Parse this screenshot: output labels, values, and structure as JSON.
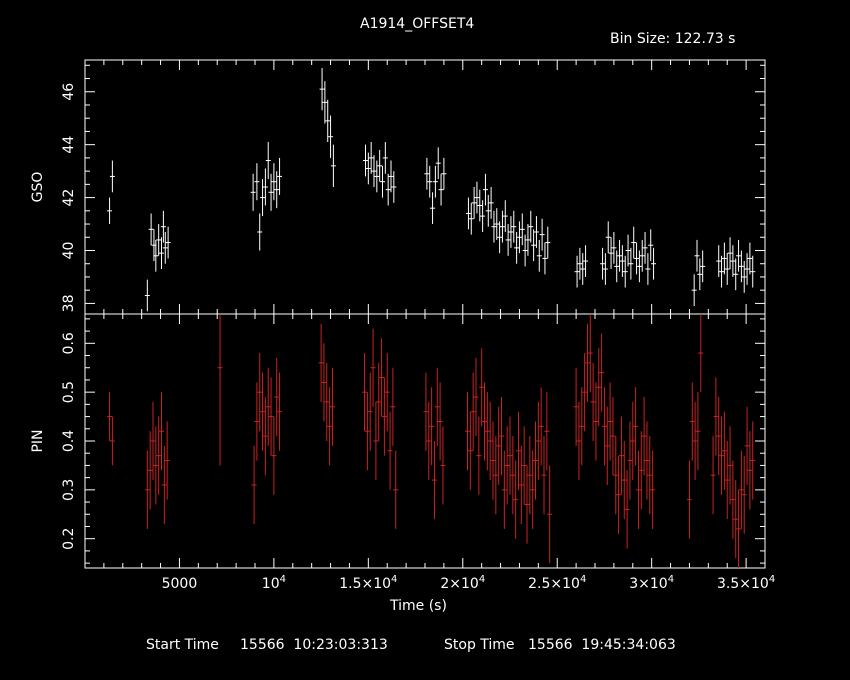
{
  "chart_data": [
    {
      "type": "scatter",
      "panel": "top",
      "title": "A1914_OFFSET4",
      "subtitle": "Bin Size: 122.73 s",
      "xlabel": "Time (s)",
      "ylabel": "GSO",
      "xlim": [
        0,
        36000
      ],
      "ylim": [
        37.6,
        47.2
      ],
      "yticks": [
        "38",
        "40",
        "42",
        "44",
        "46"
      ],
      "color": "#ffffff",
      "grid": false,
      "x": [
        1300,
        1450,
        3300,
        3500,
        3650,
        3750,
        3900,
        4050,
        4150,
        4250,
        4400,
        8900,
        9100,
        9250,
        9400,
        9550,
        9700,
        9850,
        10000,
        10150,
        10300,
        12550,
        12700,
        12850,
        13000,
        13150,
        14850,
        15000,
        15150,
        15300,
        15450,
        15600,
        15750,
        15900,
        16050,
        16200,
        16350,
        18100,
        18250,
        18400,
        18550,
        18700,
        18850,
        19000,
        20300,
        20450,
        20600,
        20750,
        20900,
        21050,
        21200,
        21350,
        21500,
        21650,
        21800,
        21950,
        22100,
        22250,
        22400,
        22550,
        22700,
        22850,
        23000,
        23150,
        23300,
        23450,
        23600,
        23750,
        23900,
        24050,
        24200,
        24350,
        24500,
        26050,
        26200,
        26350,
        26500,
        27400,
        27550,
        27700,
        27850,
        28000,
        28150,
        28300,
        28450,
        28600,
        28750,
        28900,
        29050,
        29200,
        29350,
        29500,
        29650,
        29800,
        29950,
        30100,
        32250,
        32400,
        32550,
        32700,
        33550,
        33700,
        33850,
        34000,
        34150,
        34300,
        34450,
        34600,
        34750,
        34900,
        35050,
        35200,
        35350
      ],
      "values": [
        41.5,
        42.8,
        38.3,
        40.8,
        40.2,
        39.8,
        40.4,
        39.9,
        40.9,
        40.1,
        40.3,
        42.2,
        42.6,
        40.7,
        42.0,
        42.4,
        43.4,
        42.2,
        42.6,
        42.3,
        42.8,
        46.1,
        45.6,
        44.9,
        44.3,
        43.2,
        43.4,
        43.1,
        43.5,
        43.0,
        42.8,
        43.2,
        42.6,
        43.5,
        42.3,
        42.8,
        42.4,
        42.9,
        42.6,
        41.6,
        42.6,
        43.3,
        42.3,
        42.9,
        41.4,
        41.2,
        41.8,
        42.0,
        41.7,
        41.3,
        42.3,
        41.5,
        41.8,
        40.9,
        41.0,
        40.5,
        40.9,
        41.3,
        40.4,
        40.7,
        40.9,
        40.1,
        40.5,
        40.8,
        40.0,
        40.4,
        40.9,
        40.2,
        40.7,
        39.8,
        40.6,
        39.7,
        40.3,
        39.2,
        39.5,
        39.3,
        39.6,
        39.5,
        39.3,
        40.5,
        39.9,
        40.1,
        39.4,
        39.8,
        39.6,
        39.2,
        40.0,
        39.5,
        40.3,
        39.7,
        39.4,
        39.8,
        40.1,
        39.3,
        40.2,
        39.5,
        38.5,
        39.8,
        39.1,
        39.4,
        39.6,
        39.2,
        39.7,
        39.3,
        39.9,
        39.6,
        39.1,
        39.8,
        39.4,
        39.0,
        39.3,
        39.7,
        39.2
      ],
      "errors": [
        0.5,
        0.6,
        0.6,
        0.6,
        0.6,
        0.6,
        0.6,
        0.6,
        0.6,
        0.6,
        0.6,
        0.7,
        0.7,
        0.7,
        0.7,
        0.7,
        0.7,
        0.7,
        0.7,
        0.7,
        0.7,
        0.8,
        0.8,
        0.8,
        0.8,
        0.8,
        0.6,
        0.6,
        0.6,
        0.6,
        0.6,
        0.6,
        0.6,
        0.6,
        0.6,
        0.6,
        0.6,
        0.6,
        0.6,
        0.6,
        0.6,
        0.6,
        0.6,
        0.6,
        0.6,
        0.6,
        0.6,
        0.6,
        0.6,
        0.6,
        0.6,
        0.6,
        0.6,
        0.6,
        0.6,
        0.6,
        0.6,
        0.6,
        0.6,
        0.6,
        0.6,
        0.6,
        0.6,
        0.6,
        0.6,
        0.6,
        0.6,
        0.6,
        0.6,
        0.6,
        0.6,
        0.6,
        0.6,
        0.6,
        0.6,
        0.6,
        0.6,
        0.6,
        0.6,
        0.6,
        0.6,
        0.6,
        0.6,
        0.6,
        0.6,
        0.6,
        0.6,
        0.6,
        0.6,
        0.6,
        0.6,
        0.6,
        0.6,
        0.6,
        0.6,
        0.6,
        0.6,
        0.6,
        0.6,
        0.6,
        0.6,
        0.6,
        0.6,
        0.6,
        0.6,
        0.6,
        0.6,
        0.6,
        0.6,
        0.6,
        0.6,
        0.6,
        0.6
      ]
    },
    {
      "type": "scatter",
      "panel": "bottom",
      "xlabel": "Time (s)",
      "ylabel": "PIN",
      "xlim": [
        0,
        36000
      ],
      "ylim": [
        0.14,
        0.66
      ],
      "yticks": [
        "0.2",
        "0.3",
        "0.4",
        "0.5",
        "0.6"
      ],
      "xticks": [
        5000,
        10000,
        15000,
        20000,
        25000,
        30000,
        35000
      ],
      "xticklabels": [
        [
          "5000",
          ""
        ],
        [
          "10",
          "4"
        ],
        [
          "1.5×10",
          "4"
        ],
        [
          "2×10",
          "4"
        ],
        [
          "2.5×10",
          "4"
        ],
        [
          "3×10",
          "4"
        ],
        [
          "3.5×10",
          "4"
        ]
      ],
      "color": "#cc2222",
      "grid": false,
      "x": [
        1300,
        1450,
        3300,
        3450,
        3600,
        3750,
        3900,
        4050,
        4200,
        4350,
        7150,
        8950,
        9100,
        9250,
        9400,
        9550,
        9700,
        9850,
        10000,
        10150,
        10300,
        12500,
        12650,
        12800,
        12950,
        13100,
        14800,
        14950,
        15100,
        15250,
        15400,
        15550,
        15700,
        15850,
        16000,
        16150,
        16300,
        16450,
        18050,
        18200,
        18350,
        18500,
        18650,
        18800,
        18950,
        20250,
        20400,
        20550,
        20700,
        20850,
        21000,
        21150,
        21300,
        21450,
        21600,
        21750,
        21900,
        22050,
        22200,
        22350,
        22500,
        22650,
        22800,
        22950,
        23100,
        23250,
        23400,
        23550,
        23700,
        23850,
        24000,
        24150,
        24300,
        24450,
        24600,
        26000,
        26150,
        26300,
        26450,
        26600,
        26750,
        26900,
        27050,
        27200,
        27350,
        27500,
        27650,
        27800,
        27950,
        28100,
        28250,
        28400,
        28550,
        28700,
        28850,
        29000,
        29150,
        29300,
        29450,
        29600,
        29750,
        29900,
        30050,
        32000,
        32150,
        32300,
        32450,
        32600,
        33250,
        33400,
        33550,
        33700,
        33850,
        34000,
        34150,
        34300,
        34450,
        34600,
        34750,
        34900,
        35050,
        35200,
        35350
      ],
      "values": [
        0.45,
        0.4,
        0.3,
        0.34,
        0.4,
        0.35,
        0.37,
        0.42,
        0.31,
        0.36,
        0.55,
        0.31,
        0.44,
        0.5,
        0.46,
        0.41,
        0.47,
        0.45,
        0.37,
        0.49,
        0.46,
        0.56,
        0.52,
        0.48,
        0.43,
        0.47,
        0.5,
        0.42,
        0.46,
        0.55,
        0.4,
        0.48,
        0.53,
        0.45,
        0.5,
        0.38,
        0.47,
        0.3,
        0.46,
        0.4,
        0.43,
        0.32,
        0.47,
        0.44,
        0.35,
        0.42,
        0.38,
        0.46,
        0.49,
        0.37,
        0.51,
        0.44,
        0.42,
        0.4,
        0.36,
        0.33,
        0.39,
        0.41,
        0.3,
        0.35,
        0.37,
        0.33,
        0.28,
        0.38,
        0.31,
        0.35,
        0.27,
        0.33,
        0.3,
        0.36,
        0.4,
        0.43,
        0.33,
        0.42,
        0.25,
        0.47,
        0.4,
        0.43,
        0.5,
        0.56,
        0.58,
        0.48,
        0.44,
        0.51,
        0.54,
        0.43,
        0.39,
        0.44,
        0.41,
        0.33,
        0.29,
        0.37,
        0.32,
        0.26,
        0.36,
        0.4,
        0.43,
        0.3,
        0.34,
        0.41,
        0.36,
        0.33,
        0.3,
        0.28,
        0.44,
        0.4,
        0.42,
        0.58,
        0.33,
        0.45,
        0.41,
        0.37,
        0.38,
        0.32,
        0.35,
        0.28,
        0.24,
        0.22,
        0.3,
        0.29,
        0.39,
        0.34,
        0.36
      ],
      "errors": [
        0.05,
        0.05,
        0.08,
        0.08,
        0.08,
        0.08,
        0.08,
        0.08,
        0.08,
        0.08,
        0.2,
        0.08,
        0.08,
        0.08,
        0.08,
        0.08,
        0.08,
        0.08,
        0.08,
        0.08,
        0.08,
        0.08,
        0.08,
        0.08,
        0.08,
        0.08,
        0.08,
        0.08,
        0.08,
        0.08,
        0.08,
        0.08,
        0.08,
        0.08,
        0.08,
        0.08,
        0.08,
        0.08,
        0.08,
        0.08,
        0.08,
        0.08,
        0.08,
        0.08,
        0.08,
        0.08,
        0.08,
        0.08,
        0.08,
        0.08,
        0.08,
        0.08,
        0.08,
        0.08,
        0.08,
        0.08,
        0.08,
        0.08,
        0.08,
        0.08,
        0.08,
        0.08,
        0.08,
        0.08,
        0.08,
        0.08,
        0.08,
        0.08,
        0.08,
        0.08,
        0.08,
        0.08,
        0.08,
        0.08,
        0.1,
        0.08,
        0.08,
        0.08,
        0.08,
        0.08,
        0.08,
        0.08,
        0.08,
        0.08,
        0.08,
        0.08,
        0.08,
        0.08,
        0.08,
        0.08,
        0.08,
        0.08,
        0.08,
        0.08,
        0.08,
        0.08,
        0.08,
        0.08,
        0.08,
        0.08,
        0.08,
        0.08,
        0.08,
        0.08,
        0.08,
        0.08,
        0.08,
        0.08,
        0.08,
        0.08,
        0.08,
        0.08,
        0.08,
        0.08,
        0.08,
        0.08,
        0.08,
        0.08,
        0.08,
        0.08,
        0.08,
        0.08,
        0.08
      ]
    }
  ],
  "footer": {
    "start_label": "Start Time",
    "start_value": "15566  10:23:03:313",
    "stop_label": "Stop Time",
    "stop_value": "15566  19:45:34:063"
  }
}
